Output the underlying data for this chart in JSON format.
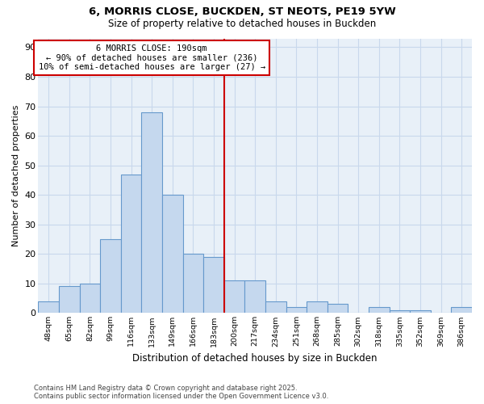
{
  "title_line1": "6, MORRIS CLOSE, BUCKDEN, ST NEOTS, PE19 5YW",
  "title_line2": "Size of property relative to detached houses in Buckden",
  "xlabel": "Distribution of detached houses by size in Buckden",
  "ylabel": "Number of detached properties",
  "footnote_line1": "Contains HM Land Registry data © Crown copyright and database right 2025.",
  "footnote_line2": "Contains public sector information licensed under the Open Government Licence v3.0.",
  "bar_labels": [
    "48sqm",
    "65sqm",
    "82sqm",
    "99sqm",
    "116sqm",
    "133sqm",
    "149sqm",
    "166sqm",
    "183sqm",
    "200sqm",
    "217sqm",
    "234sqm",
    "251sqm",
    "268sqm",
    "285sqm",
    "302sqm",
    "318sqm",
    "335sqm",
    "352sqm",
    "369sqm",
    "386sqm"
  ],
  "bar_values": [
    4,
    9,
    10,
    25,
    47,
    68,
    40,
    20,
    19,
    11,
    11,
    4,
    2,
    4,
    3,
    0,
    2,
    1,
    1,
    0,
    2
  ],
  "bar_color": "#c5d8ee",
  "bar_edge_color": "#6699cc",
  "grid_color": "#c8d8ec",
  "vline_x": 8.5,
  "vline_color": "#cc0000",
  "annotation_line1": "6 MORRIS CLOSE: 190sqm",
  "annotation_line2": "← 90% of detached houses are smaller (236)",
  "annotation_line3": "10% of semi-detached houses are larger (27) →",
  "annotation_box_color": "#cc0000",
  "ylim": [
    0,
    93
  ],
  "yticks": [
    0,
    10,
    20,
    30,
    40,
    50,
    60,
    70,
    80,
    90
  ],
  "background_color": "#ffffff",
  "plot_background": "#ffffff",
  "grid_bg": "#e8f0f8"
}
